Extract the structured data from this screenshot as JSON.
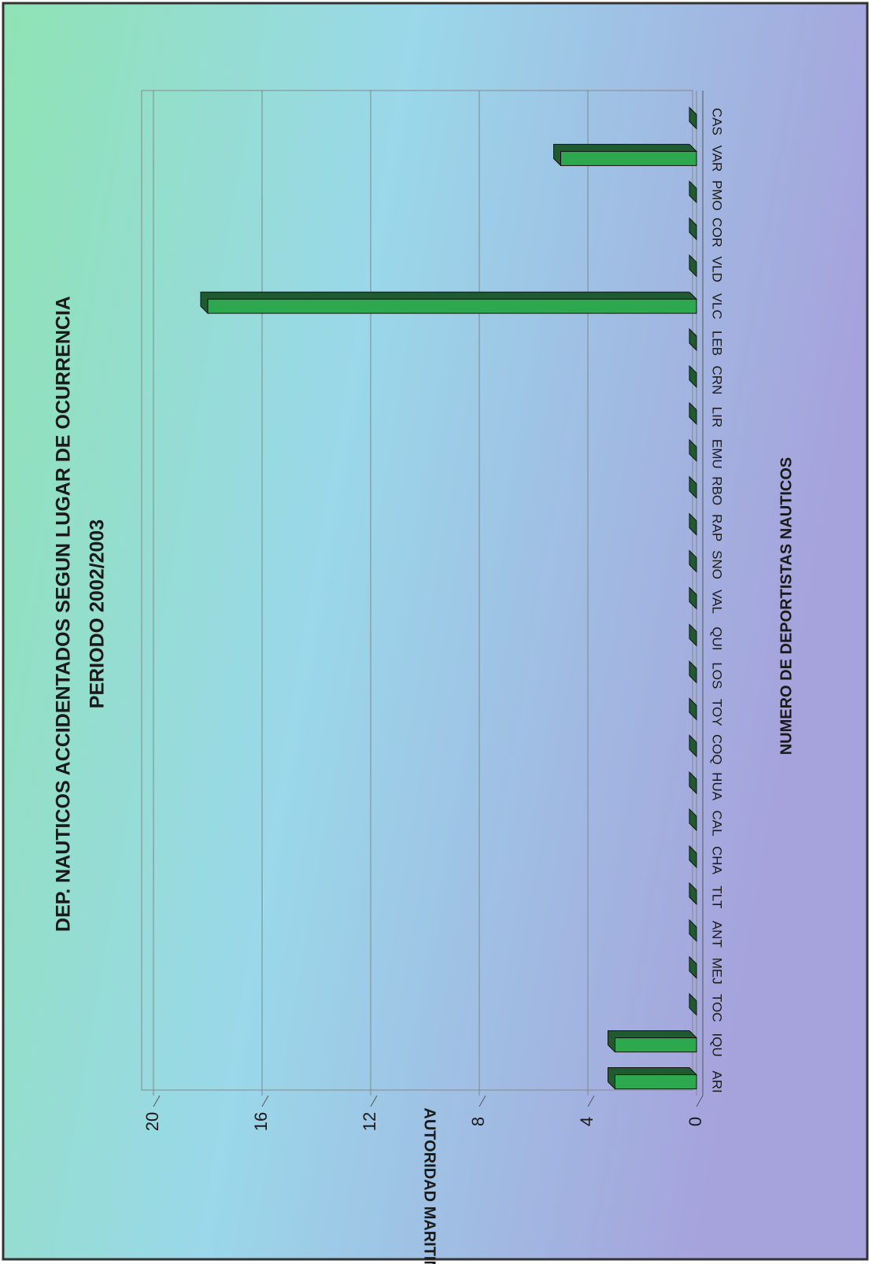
{
  "chart_data": {
    "type": "bar",
    "title": "DEP. NAUTICOS ACCIDENTADOS SEGUN LUGAR DE OCURRENCIA",
    "subtitle": "PERIODO 2002/2003",
    "x_label": "NUMERO DE DEPORTISTAS NAUTICOS",
    "y_label": "AUTORIDAD MARITIMA",
    "categories": [
      "ARI",
      "IQU",
      "TOC",
      "MEJ",
      "ANT",
      "TLT",
      "CHA",
      "CAL",
      "HUA",
      "COQ",
      "TOY",
      "LOS",
      "QUI",
      "VAL",
      "SNO",
      "RAP",
      "RBO",
      "EMU",
      "LIR",
      "CRN",
      "LEB",
      "VLC",
      "VLD",
      "COR",
      "PMO",
      "VAR",
      "CAS"
    ],
    "values": [
      3,
      3,
      0,
      0,
      0,
      0,
      0,
      0,
      0,
      0,
      0,
      0,
      0,
      0,
      0,
      0,
      0,
      0,
      0,
      0,
      0,
      18,
      0,
      0,
      0,
      5,
      0
    ],
    "color": "#2ea84f",
    "ylim": [
      0,
      20
    ],
    "yticks": [
      0,
      4,
      8,
      12,
      16,
      20
    ],
    "grid": true
  }
}
